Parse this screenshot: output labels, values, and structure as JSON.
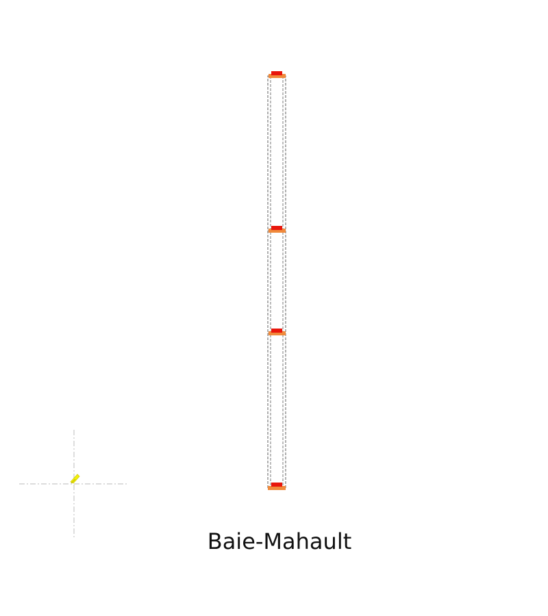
{
  "caption": "Baie-Mahault",
  "colors": {
    "background": "#ffffff",
    "outline": "#7a7a7a",
    "axis": "#c8c8c8",
    "marker_red": "#e8160c",
    "marker_orange": "#f08a3c",
    "pointer": "#f2f20a"
  },
  "icons": {
    "pointer": "pointer-icon",
    "crosshair": "crosshair-icon"
  }
}
